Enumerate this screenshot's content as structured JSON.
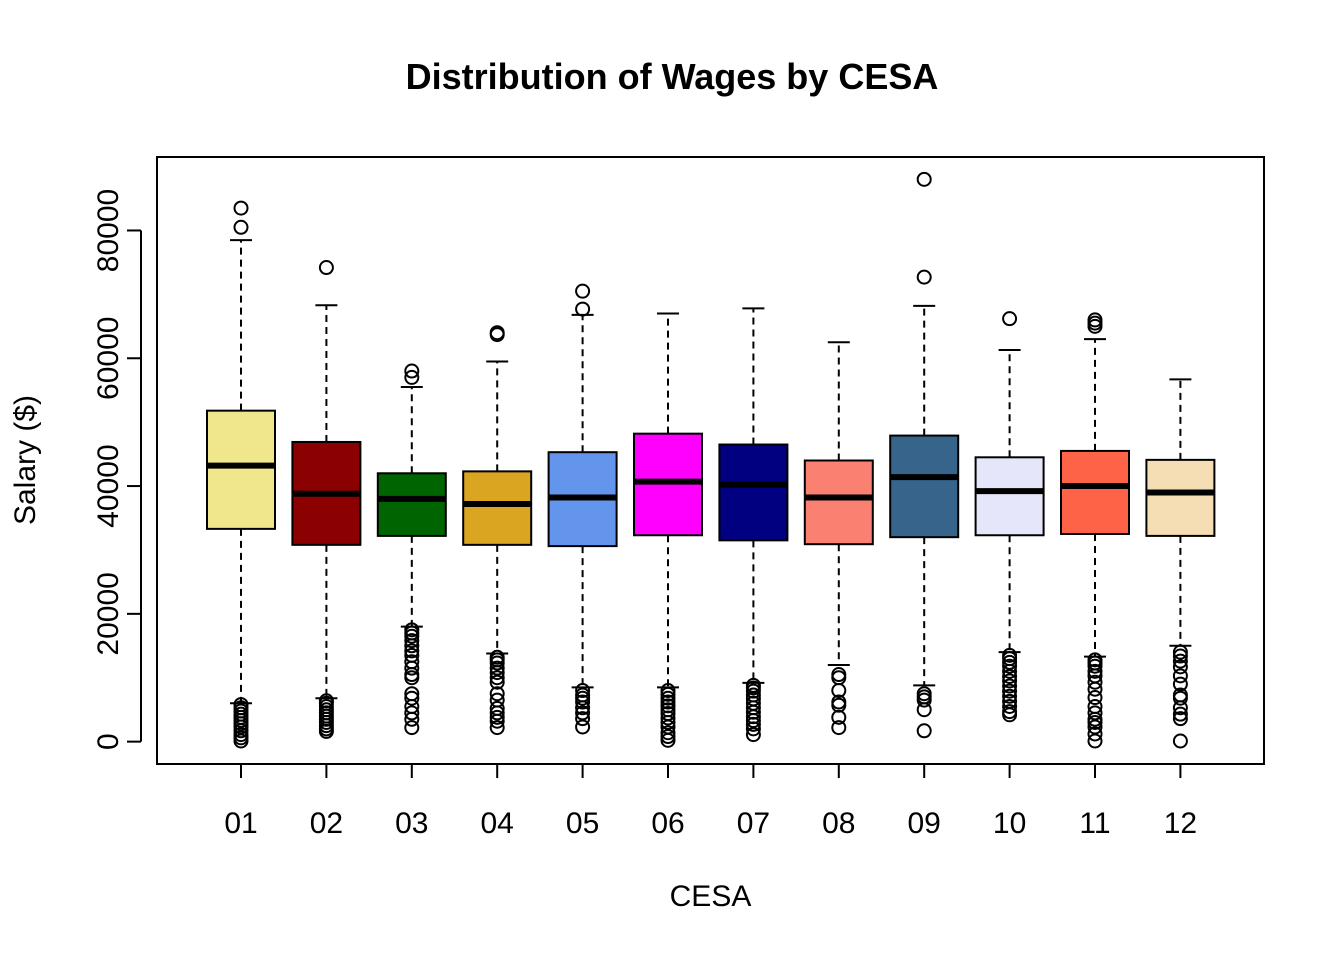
{
  "chart_data": {
    "type": "boxplot",
    "title": "Distribution of Wages by CESA",
    "xlabel": "CESA",
    "ylabel": "Salary ($)",
    "categories": [
      "01",
      "02",
      "03",
      "04",
      "05",
      "06",
      "07",
      "08",
      "09",
      "10",
      "11",
      "12"
    ],
    "y_ticks": [
      0,
      20000,
      40000,
      60000,
      80000
    ],
    "y_tick_labels": [
      "0",
      "20000",
      "40000",
      "60000",
      "80000"
    ],
    "ylim": [
      -3500,
      91500
    ],
    "grid": false,
    "legend": "none",
    "boxes": [
      {
        "category": "01",
        "color": "#F0E68C",
        "lower_whisker": 6000,
        "q1": 33300,
        "median": 43200,
        "q3": 51800,
        "upper_whisker": 78500,
        "outliers": [
          83500,
          80500,
          5800,
          5300,
          4800,
          4300,
          3800,
          3300,
          2800,
          2300,
          1700,
          1100,
          600,
          100
        ]
      },
      {
        "category": "02",
        "color": "#8B0000",
        "lower_whisker": 6800,
        "q1": 30800,
        "median": 38800,
        "q3": 46900,
        "upper_whisker": 68300,
        "outliers": [
          74200,
          6400,
          6000,
          5500,
          5000,
          4500,
          4000,
          3500,
          3000,
          2500,
          2000,
          1600
        ]
      },
      {
        "category": "03",
        "color": "#006400",
        "lower_whisker": 18000,
        "q1": 32200,
        "median": 38000,
        "q3": 42000,
        "upper_whisker": 55500,
        "outliers": [
          58000,
          57000,
          17500,
          17000,
          16500,
          15800,
          15000,
          14200,
          13500,
          12500,
          11500,
          10500,
          10000,
          7500,
          6800,
          5500,
          4500,
          3500,
          2200
        ]
      },
      {
        "category": "04",
        "color": "#DAA520",
        "lower_whisker": 13800,
        "q1": 30800,
        "median": 37200,
        "q3": 42300,
        "upper_whisker": 59500,
        "outliers": [
          64000,
          63700,
          13200,
          12800,
          12300,
          11500,
          10800,
          10000,
          9300,
          7500,
          6500,
          5200,
          4500,
          3800,
          3200,
          2200
        ]
      },
      {
        "category": "05",
        "color": "#6495ED",
        "lower_whisker": 8500,
        "q1": 30600,
        "median": 38200,
        "q3": 45300,
        "upper_whisker": 66800,
        "outliers": [
          70500,
          67700,
          8000,
          7300,
          6800,
          6200,
          5300,
          4500,
          3600,
          2300
        ]
      },
      {
        "category": "06",
        "color": "#FF00FF",
        "lower_whisker": 8500,
        "q1": 32300,
        "median": 40700,
        "q3": 48200,
        "upper_whisker": 67000,
        "outliers": [
          8000,
          7400,
          6800,
          6200,
          5600,
          5000,
          4400,
          3700,
          3000,
          2300,
          1400,
          800,
          200
        ]
      },
      {
        "category": "07",
        "color": "#000080",
        "lower_whisker": 9200,
        "q1": 31500,
        "median": 40200,
        "q3": 46500,
        "upper_whisker": 67800,
        "outliers": [
          8800,
          8400,
          7900,
          7300,
          6700,
          6000,
          5300,
          4600,
          3900,
          3300,
          2700,
          2000,
          1100
        ]
      },
      {
        "category": "08",
        "color": "#FA8072",
        "lower_whisker": 12000,
        "q1": 30900,
        "median": 38200,
        "q3": 44000,
        "upper_whisker": 62500,
        "outliers": [
          10500,
          10000,
          8000,
          6200,
          5700,
          3800,
          2200
        ]
      },
      {
        "category": "09",
        "color": "#36648B",
        "lower_whisker": 8800,
        "q1": 32000,
        "median": 41400,
        "q3": 47900,
        "upper_whisker": 68200,
        "outliers": [
          88000,
          72700,
          7500,
          7000,
          6500,
          5000,
          1700
        ]
      },
      {
        "category": "10",
        "color": "#E6E6FA",
        "lower_whisker": 14000,
        "q1": 32300,
        "median": 39200,
        "q3": 44500,
        "upper_whisker": 61300,
        "outliers": [
          66200,
          13500,
          13000,
          12400,
          11800,
          11000,
          10200,
          9500,
          8700,
          7900,
          7100,
          6300,
          5500,
          4700,
          4200
        ]
      },
      {
        "category": "11",
        "color": "#FF6347",
        "lower_whisker": 13300,
        "q1": 32500,
        "median": 40000,
        "q3": 45500,
        "upper_whisker": 63000,
        "outliers": [
          66000,
          65500,
          65000,
          12800,
          12300,
          11800,
          11000,
          10300,
          9300,
          8200,
          6900,
          5500,
          4500,
          3500,
          3000,
          2300,
          1200,
          100
        ]
      },
      {
        "category": "12",
        "color": "#F5DEB3",
        "lower_whisker": 15000,
        "q1": 32200,
        "median": 39000,
        "q3": 44100,
        "upper_whisker": 56700,
        "outliers": [
          14000,
          13400,
          12600,
          11700,
          10300,
          9000,
          7300,
          6800,
          5300,
          4300,
          3600,
          100
        ]
      }
    ]
  }
}
